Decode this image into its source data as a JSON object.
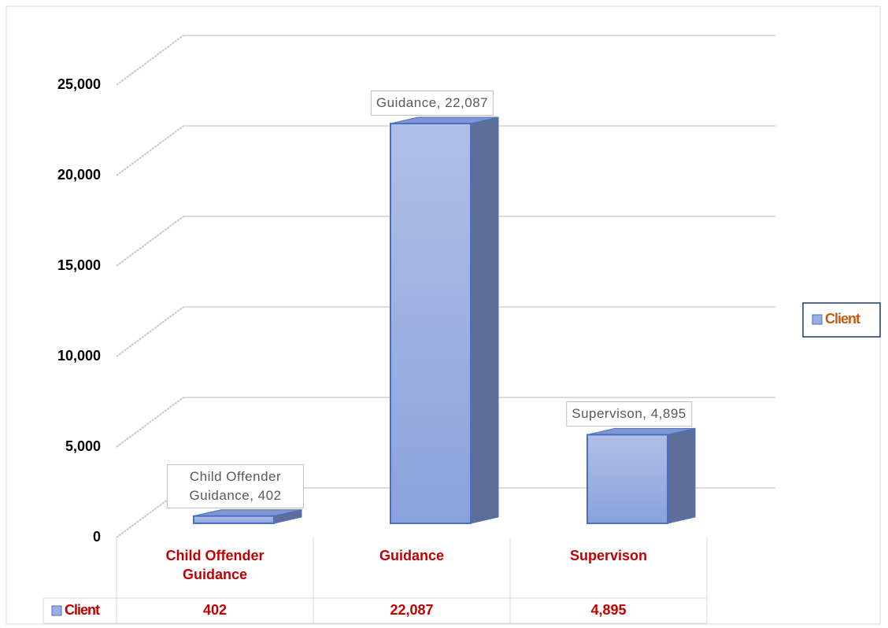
{
  "chart_data": {
    "type": "bar3d",
    "categories": [
      "Child Offender Guidance",
      "Guidance",
      "Supervison"
    ],
    "series": [
      {
        "name": "Client",
        "color": "#9aaee0",
        "values": [
          402,
          22087,
          4895
        ],
        "value_labels": [
          "402",
          "22,087",
          "4,895"
        ],
        "data_labels": [
          "Child Offender Guidance, 402",
          "Guidance, 22,087",
          "Supervison, 4,895"
        ]
      }
    ],
    "ylim": [
      0,
      25000
    ],
    "yticks": [
      0,
      {
        "value": 5000,
        "label": "5,000"
      },
      {
        "value": 10000,
        "label": "10,000"
      },
      {
        "value": 15000,
        "label": "15,000"
      },
      {
        "value": 20000,
        "label": "20,000"
      },
      {
        "value": 25000,
        "label": "25,000"
      }
    ],
    "grid": true,
    "legend": "right",
    "data_table": true
  }
}
